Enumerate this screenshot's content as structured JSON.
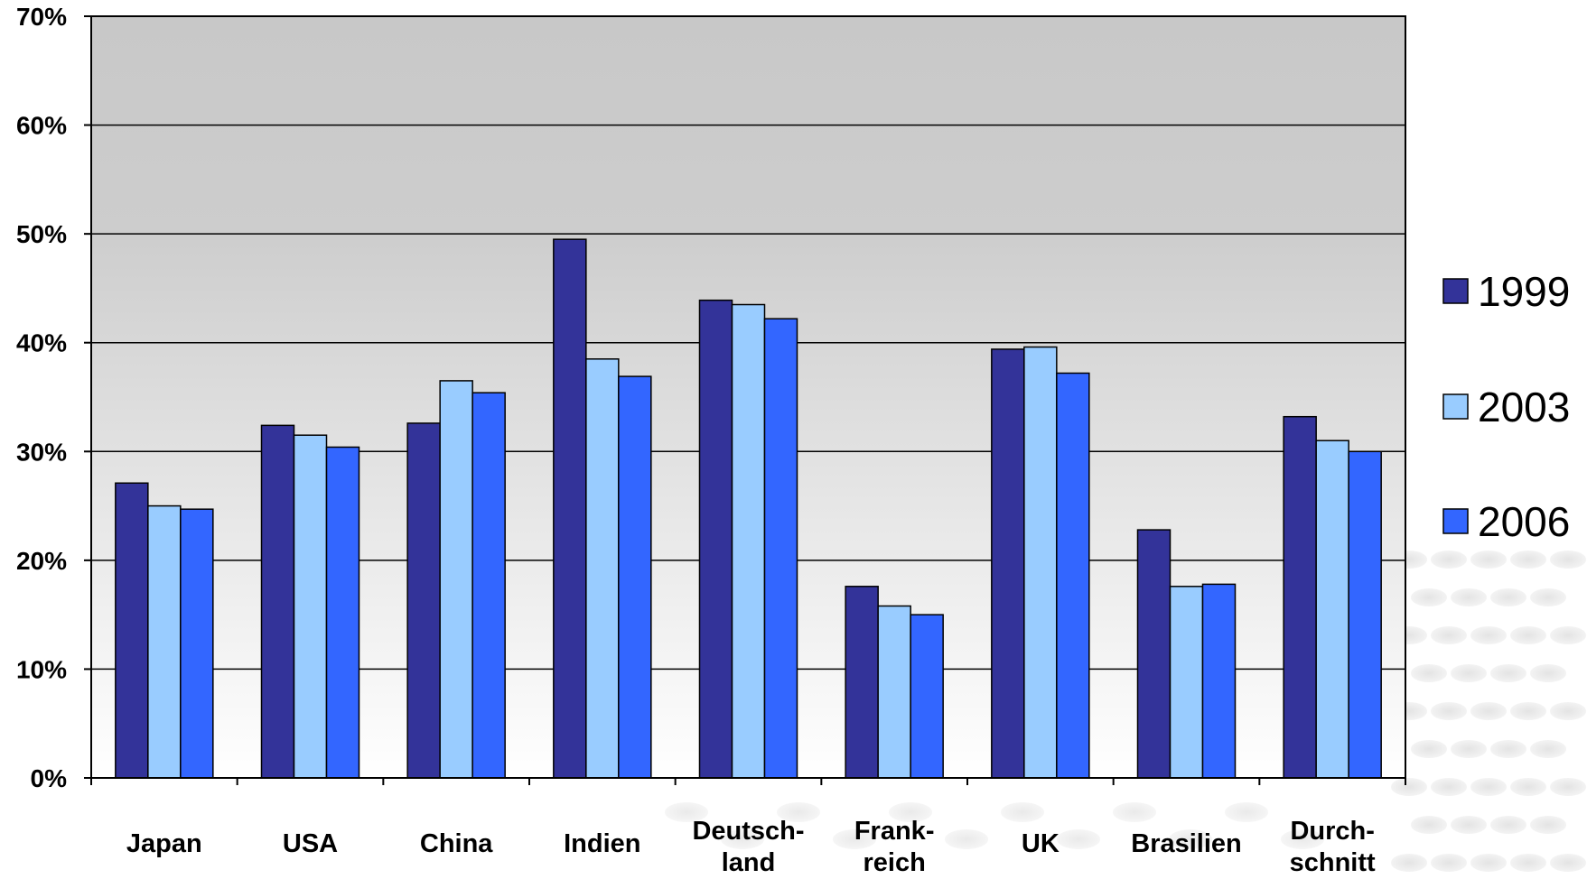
{
  "chart_data": {
    "type": "bar",
    "categories": [
      [
        "Japan"
      ],
      [
        "USA"
      ],
      [
        "China"
      ],
      [
        "Indien"
      ],
      [
        "Deutsch-",
        "land"
      ],
      [
        "Frank-",
        "reich"
      ],
      [
        "UK"
      ],
      [
        "Brasilien"
      ],
      [
        "Durch-",
        "schnitt"
      ]
    ],
    "series": [
      {
        "name": "1999",
        "color": "#333399",
        "values": [
          27.1,
          32.4,
          32.6,
          49.5,
          43.9,
          17.6,
          39.4,
          22.8,
          33.2
        ]
      },
      {
        "name": "2003",
        "color": "#99CCFF",
        "values": [
          25.0,
          31.5,
          36.5,
          38.5,
          43.5,
          15.8,
          39.6,
          17.6,
          31.0
        ]
      },
      {
        "name": "2006",
        "color": "#3366FF",
        "values": [
          24.7,
          30.4,
          35.4,
          36.9,
          42.2,
          15.0,
          37.2,
          17.8,
          30.0
        ]
      }
    ],
    "ylim": [
      0,
      70
    ],
    "yticks": [
      0,
      10,
      20,
      30,
      40,
      50,
      60,
      70
    ],
    "ytick_labels": [
      "0%",
      "10%",
      "20%",
      "30%",
      "40%",
      "50%",
      "60%",
      "70%"
    ],
    "grid": true,
    "legend_position": "right",
    "title": "",
    "xlabel": "",
    "ylabel": ""
  }
}
